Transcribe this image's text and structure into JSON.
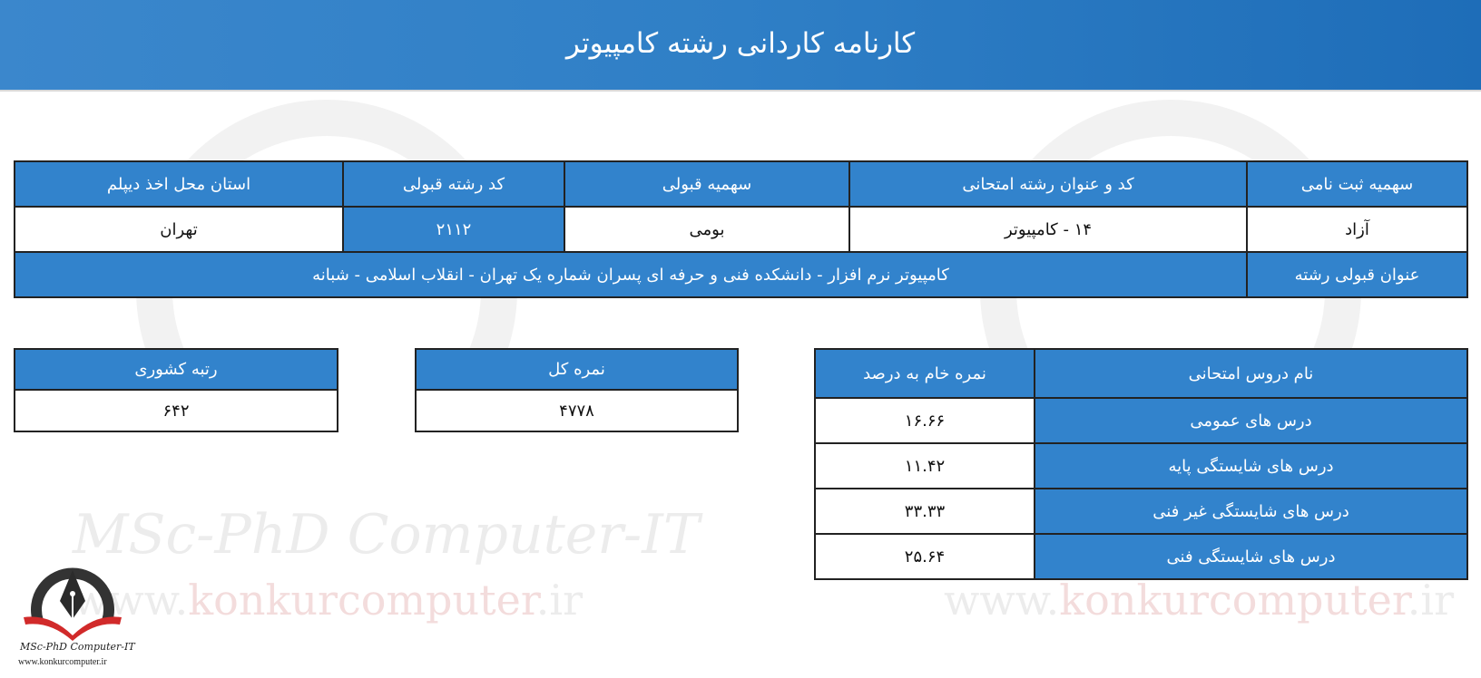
{
  "header": {
    "title": "کارنامه کاردانی رشته کامپیوتر"
  },
  "watermark": {
    "brand": "MSc-PhD Computer-IT",
    "url_prefix": "www.",
    "url_domain": "konkurcomputer",
    "url_suffix": ".ir"
  },
  "info_table": {
    "headers": [
      "سهمیه ثبت نامی",
      "کد و عنوان رشته امتحانی",
      "سهمیه قبولی",
      "کد رشته قبولی",
      "استان محل اخذ دیپلم"
    ],
    "values": [
      "آزاد",
      "۱۴ - کامپیوتر",
      "بومی",
      "۲۱۱۲",
      "تهران"
    ],
    "accepted_label": "عنوان قبولی رشته",
    "accepted_value": "کامپیوتر نرم افزار - دانشکده فنی و حرفه ای پسران شماره یک تهران - انقلاب اسلامی - شبانه"
  },
  "scores_table": {
    "headers": [
      "نام دروس امتحانی",
      "نمره خام به درصد"
    ],
    "rows": [
      {
        "name": "درس های عمومی",
        "score": "۱۶.۶۶"
      },
      {
        "name": "درس های شایستگی پایه",
        "score": "۱۱.۴۲"
      },
      {
        "name": "درس های شایستگی غیر فنی",
        "score": "۳۳.۳۳"
      },
      {
        "name": "درس های شایستگی فنی",
        "score": "۲۵.۶۴"
      }
    ]
  },
  "total": {
    "label": "نمره کل",
    "value": "۴۷۷۸"
  },
  "rank": {
    "label": "رتبه کشوری",
    "value": "۶۴۲"
  },
  "logo": {
    "brand": "MSc-PhD Computer-IT",
    "url": "www.konkurcomputer.ir"
  },
  "colors": {
    "header": "#2f7fc6",
    "cell_blue": "#3283cc",
    "border": "#222222"
  }
}
